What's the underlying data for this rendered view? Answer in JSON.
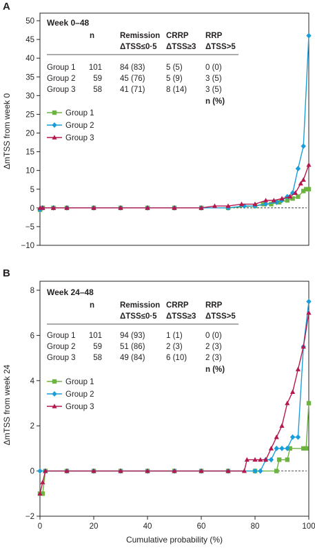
{
  "x_axis_label": "Cumulative probability (%)",
  "legend_header_n": "n",
  "colors": {
    "group1": "#6cb33f",
    "group2": "#1a9ed9",
    "group3": "#b5174f",
    "axis": "#231f20"
  },
  "panels": [
    {
      "letter": "A",
      "title": "Week 0–48",
      "ylabel": "ΔmTSS from week 0",
      "table": {
        "headers": [
          {
            "line1": "Remission",
            "line2": "ΔTSS≤0·5"
          },
          {
            "line1": "CRRP",
            "line2": "ΔTSS≥3"
          },
          {
            "line1": "RRP",
            "line2": "ΔTSS>5"
          }
        ],
        "rows": [
          {
            "group": "Group 1",
            "n": "101",
            "c1": "84 (83)",
            "c2": "5 (5)",
            "c3": "0 (0)"
          },
          {
            "group": "Group 2",
            "n": "59",
            "c1": "45 (76)",
            "c2": "5 (9)",
            "c3": "3 (5)"
          },
          {
            "group": "Group 3",
            "n": "58",
            "c1": "41 (71)",
            "c2": "8 (14)",
            "c3": "3 (5)"
          }
        ],
        "footer": "n (%)"
      }
    },
    {
      "letter": "B",
      "title": "Week 24–48",
      "ylabel": "ΔmTSS from week 24",
      "table": {
        "headers": [
          {
            "line1": "Remission",
            "line2": "ΔTSS≤0·5"
          },
          {
            "line1": "CRRP",
            "line2": "ΔTSS≥3"
          },
          {
            "line1": "RRP",
            "line2": "ΔTSS>5"
          }
        ],
        "rows": [
          {
            "group": "Group 1",
            "n": "101",
            "c1": "94 (93)",
            "c2": "1 (1)",
            "c3": "0 (0)"
          },
          {
            "group": "Group 2",
            "n": "59",
            "c1": "51 (86)",
            "c2": "2 (3)",
            "c3": "2 (3)"
          },
          {
            "group": "Group 3",
            "n": "58",
            "c1": "49 (84)",
            "c2": "6 (10)",
            "c3": "2 (3)"
          }
        ],
        "footer": "n (%)"
      }
    }
  ],
  "chart_data": [
    {
      "type": "line",
      "title": "Week 0–48",
      "xlabel": "",
      "ylabel": "ΔmTSS from week 0",
      "xlim": [
        0,
        100
      ],
      "ylim": [
        -10,
        50
      ],
      "yticks": [
        -10,
        -5,
        0,
        5,
        10,
        15,
        20,
        25,
        30,
        35,
        40,
        45,
        50
      ],
      "xticks": [
        0,
        20,
        40,
        60,
        80,
        100
      ],
      "reference_line": 0,
      "legend": "top-left",
      "series": [
        {
          "name": "Group 1",
          "marker": "square",
          "color": "#6cb33f",
          "x": [
            0,
            1,
            5,
            10,
            20,
            30,
            40,
            50,
            60,
            70,
            80,
            83,
            86,
            89,
            92,
            94,
            96,
            98,
            99,
            100
          ],
          "y": [
            -0.5,
            0,
            0,
            0,
            0,
            0,
            0,
            0,
            0,
            0,
            0.5,
            1,
            1,
            1.5,
            2,
            2.5,
            3,
            4.5,
            5,
            5
          ]
        },
        {
          "name": "Group 2",
          "marker": "diamond",
          "color": "#1a9ed9",
          "x": [
            0,
            1,
            5,
            10,
            20,
            30,
            40,
            50,
            60,
            70,
            76,
            80,
            84,
            88,
            90,
            92,
            94,
            96,
            98,
            100
          ],
          "y": [
            -0.5,
            0,
            0,
            0,
            0,
            0,
            0,
            0,
            0,
            0,
            0.5,
            0.5,
            1,
            1.5,
            2,
            3,
            4,
            10.5,
            16.5,
            46
          ]
        },
        {
          "name": "Group 3",
          "marker": "triangle",
          "color": "#b5174f",
          "x": [
            0,
            1,
            5,
            10,
            20,
            30,
            40,
            50,
            60,
            65,
            70,
            75,
            80,
            84,
            87,
            90,
            93,
            95,
            97,
            98,
            100
          ],
          "y": [
            0,
            0,
            0,
            0,
            0,
            0,
            0,
            0,
            0,
            0.5,
            0.5,
            1,
            1,
            2,
            2,
            2.5,
            3,
            4,
            6.5,
            7.5,
            11.5
          ]
        }
      ]
    },
    {
      "type": "line",
      "title": "Week 24–48",
      "xlabel": "Cumulative probability (%)",
      "ylabel": "ΔmTSS from week 24",
      "xlim": [
        0,
        100
      ],
      "ylim": [
        -2,
        8
      ],
      "yticks": [
        -2,
        0,
        2,
        4,
        6,
        8
      ],
      "xticks": [
        0,
        20,
        40,
        60,
        80,
        100
      ],
      "reference_line": 0,
      "legend": "left",
      "series": [
        {
          "name": "Group 1",
          "marker": "square",
          "color": "#6cb33f",
          "x": [
            0,
            1,
            2,
            10,
            20,
            30,
            40,
            50,
            60,
            70,
            80,
            88,
            89,
            92,
            93,
            98,
            99,
            100
          ],
          "y": [
            -1,
            -1,
            0,
            0,
            0,
            0,
            0,
            0,
            0,
            0,
            0,
            0,
            0.5,
            0.5,
            1,
            1,
            1,
            3
          ]
        },
        {
          "name": "Group 2",
          "marker": "diamond",
          "color": "#1a9ed9",
          "x": [
            0,
            2,
            10,
            20,
            30,
            40,
            50,
            60,
            70,
            80,
            82,
            84,
            86,
            88,
            90,
            92,
            94,
            96,
            98,
            100
          ],
          "y": [
            0,
            0,
            0,
            0,
            0,
            0,
            0,
            0,
            0,
            0,
            0,
            0.5,
            0.5,
            1,
            1,
            1,
            1.5,
            1.5,
            5.5,
            7.5
          ]
        },
        {
          "name": "Group 3",
          "marker": "triangle",
          "color": "#b5174f",
          "x": [
            0,
            1,
            2,
            10,
            20,
            30,
            40,
            50,
            60,
            70,
            76,
            77,
            80,
            82,
            84,
            86,
            88,
            90,
            92,
            94,
            96,
            98,
            100
          ],
          "y": [
            -1,
            -0.5,
            0,
            0,
            0,
            0,
            0,
            0,
            0,
            0,
            0,
            0.5,
            0.5,
            0.5,
            0.5,
            1,
            1.5,
            2,
            3,
            3.5,
            4.5,
            5.5,
            7
          ]
        }
      ]
    }
  ]
}
